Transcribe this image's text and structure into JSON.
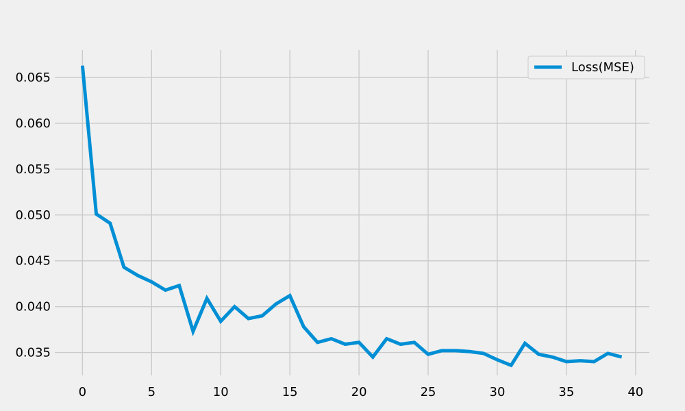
{
  "chart_data": {
    "type": "line",
    "title": "",
    "xlabel": "",
    "ylabel": "",
    "xlim": [
      -2,
      41
    ],
    "ylim": [
      0.0325,
      0.068
    ],
    "grid": true,
    "legend_position": "upper right",
    "x_ticks": [
      "0",
      "5",
      "10",
      "15",
      "20",
      "25",
      "30",
      "35",
      "40"
    ],
    "y_ticks": [
      "0.035",
      "0.040",
      "0.045",
      "0.050",
      "0.055",
      "0.060",
      "0.065"
    ],
    "x_tick_values": [
      0,
      5,
      10,
      15,
      20,
      25,
      30,
      35,
      40
    ],
    "y_tick_values": [
      0.035,
      0.04,
      0.045,
      0.05,
      0.055,
      0.06,
      0.065
    ],
    "series": [
      {
        "name": "Loss(MSE)",
        "color": "#008fd5",
        "x": [
          0,
          1,
          2,
          3,
          4,
          5,
          6,
          7,
          8,
          9,
          10,
          11,
          12,
          13,
          14,
          15,
          16,
          17,
          18,
          19,
          20,
          21,
          22,
          23,
          24,
          25,
          26,
          27,
          28,
          29,
          30,
          31,
          32,
          33,
          34,
          35,
          36,
          37,
          38,
          39
        ],
        "y": [
          0.0663,
          0.0501,
          0.0491,
          0.0443,
          0.0434,
          0.0427,
          0.0418,
          0.0423,
          0.0373,
          0.0409,
          0.0384,
          0.04,
          0.0387,
          0.039,
          0.0403,
          0.0412,
          0.0378,
          0.0361,
          0.0365,
          0.0359,
          0.0361,
          0.0345,
          0.0365,
          0.0359,
          0.0361,
          0.0348,
          0.0352,
          0.0352,
          0.0351,
          0.0349,
          0.0342,
          0.0336,
          0.036,
          0.0348,
          0.0345,
          0.034,
          0.0341,
          0.034,
          0.0349,
          0.0345
        ]
      }
    ]
  },
  "colors": {
    "background": "#f0f0f0",
    "grid": "#cbcbcb",
    "text": "#000000",
    "line": "#008fd5"
  }
}
